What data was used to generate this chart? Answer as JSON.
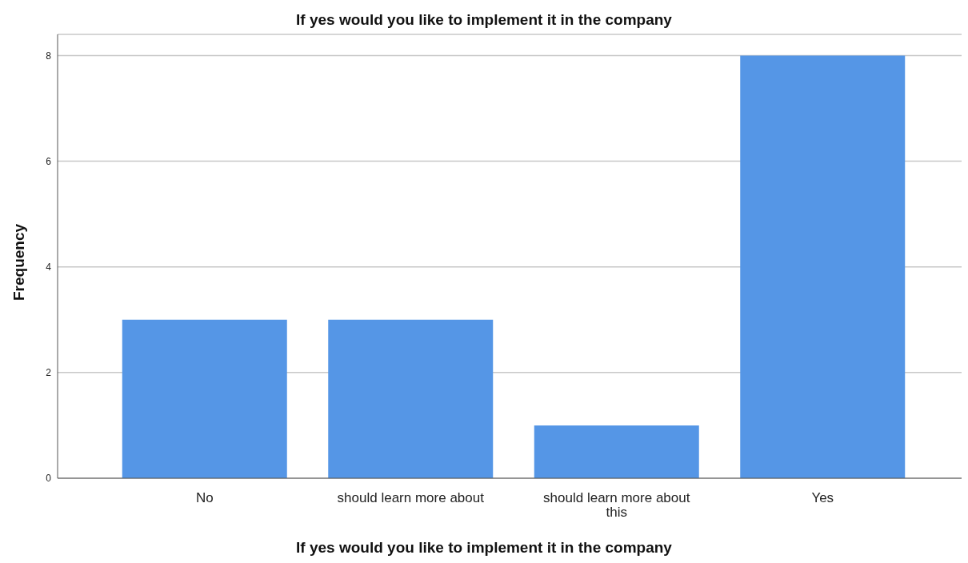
{
  "chart_data": {
    "type": "bar",
    "title": "If yes would you like to implement it in the company",
    "xlabel": "If yes would you like to implement it in the company",
    "ylabel": "Frequency",
    "categories": [
      "No",
      "should learn more about",
      "should learn more about this",
      "Yes"
    ],
    "values": [
      3,
      3,
      1,
      8
    ],
    "color": "#5596e6",
    "ylim": [
      0,
      8.4
    ],
    "yticks": [
      0,
      2,
      4,
      6,
      8
    ],
    "grid": "y"
  }
}
